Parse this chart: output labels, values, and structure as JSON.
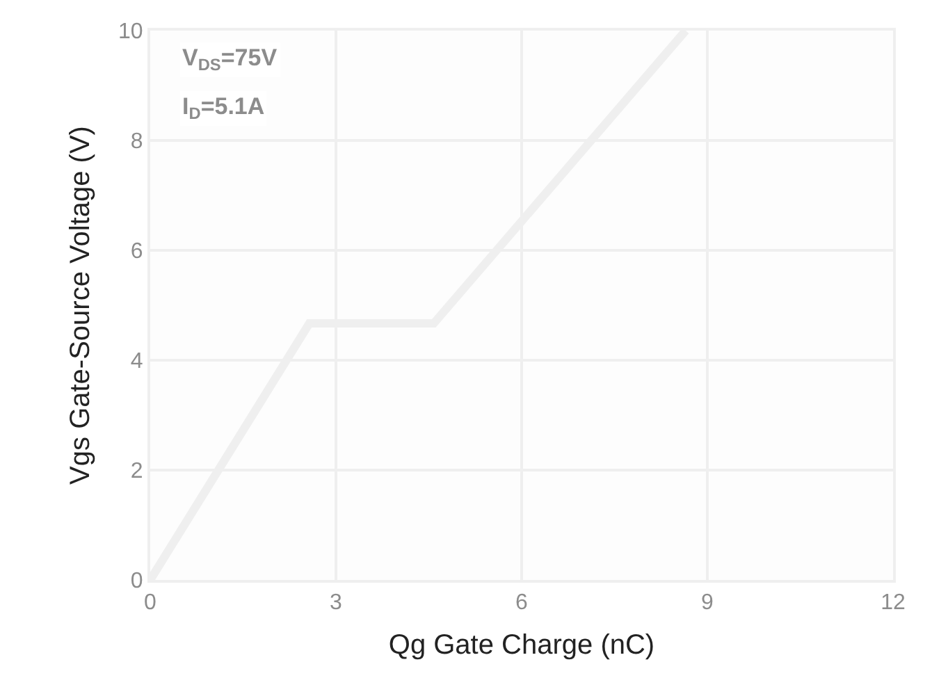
{
  "chart_data": {
    "type": "line",
    "xlabel": "Qg Gate Charge (nC)",
    "ylabel": "Vgs Gate-Source Voltage (V)",
    "x": [
      0,
      2.57,
      4.58,
      8.65
    ],
    "series": [
      {
        "color": "#efefef",
        "values": [
          0,
          4.67,
          4.67,
          10
        ]
      }
    ],
    "xlim": [
      0,
      12
    ],
    "xticks": [
      0,
      3,
      6,
      9,
      12
    ],
    "ylim": [
      0,
      10
    ],
    "yticks": [
      0,
      2,
      4,
      6,
      8,
      10
    ],
    "grid": true,
    "marker": "none",
    "line_style": "solid",
    "annotations": [
      "V$_{DS}$=75V",
      "I$_{D}$=5.1A"
    ]
  }
}
